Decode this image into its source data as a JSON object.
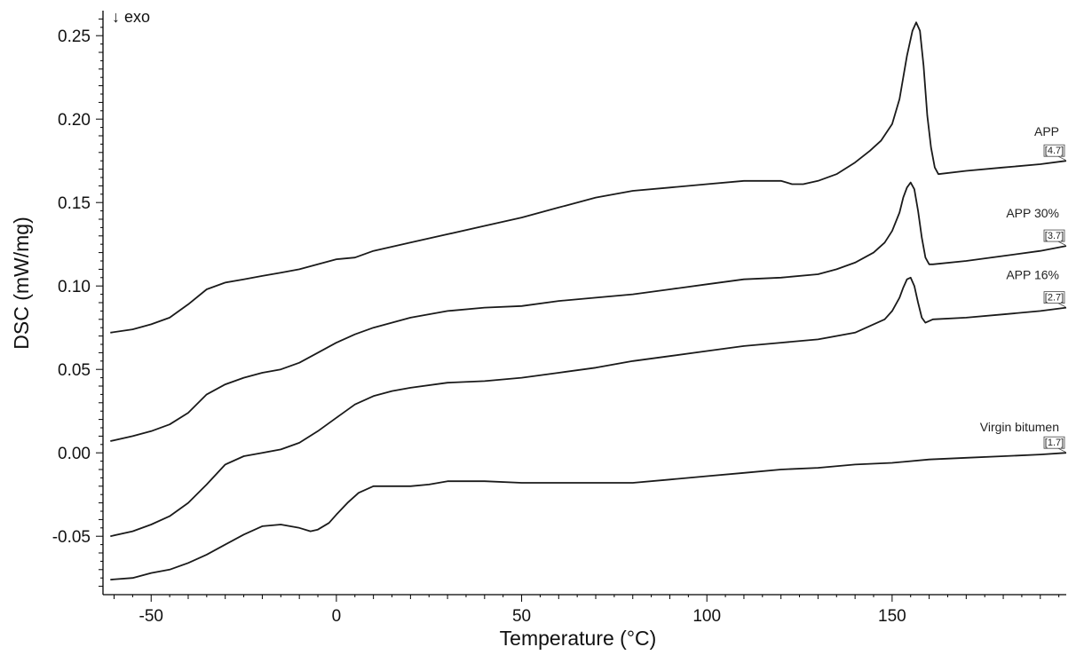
{
  "chart_data": {
    "type": "line",
    "title": "",
    "xlabel": "Temperature (°C)",
    "ylabel": "DSC  (mW/mg)",
    "annotation": "↓ exo",
    "xlim": [
      -63,
      197
    ],
    "ylim": [
      -0.085,
      0.265
    ],
    "x_ticks": [
      -50,
      0,
      50,
      100,
      150
    ],
    "y_ticks": [
      -0.05,
      0.0,
      0.05,
      0.1,
      0.15,
      0.2,
      0.25
    ],
    "y_tick_labels": [
      "-0.05",
      "0.00",
      "0.05",
      "0.10",
      "0.15",
      "0.20",
      "0.25"
    ],
    "grid": false,
    "legend": "none",
    "series": [
      {
        "name": "APP",
        "end_tag": "[4.7]",
        "x": [
          -61,
          -55,
          -50,
          -45,
          -40,
          -35,
          -30,
          -25,
          -20,
          -15,
          -10,
          -5,
          0,
          5,
          10,
          20,
          30,
          40,
          50,
          60,
          70,
          80,
          90,
          100,
          110,
          120,
          123,
          126,
          130,
          135,
          140,
          144,
          147,
          150,
          152,
          154,
          155.5,
          156.5,
          157.5,
          158.5,
          159.5,
          160.5,
          161.5,
          162.5,
          170,
          180,
          190,
          197
        ],
        "y": [
          0.072,
          0.074,
          0.077,
          0.081,
          0.089,
          0.098,
          0.102,
          0.104,
          0.106,
          0.108,
          0.11,
          0.113,
          0.116,
          0.117,
          0.121,
          0.126,
          0.131,
          0.136,
          0.141,
          0.147,
          0.153,
          0.157,
          0.159,
          0.161,
          0.163,
          0.163,
          0.161,
          0.161,
          0.163,
          0.167,
          0.174,
          0.181,
          0.187,
          0.197,
          0.212,
          0.238,
          0.253,
          0.258,
          0.253,
          0.232,
          0.202,
          0.183,
          0.171,
          0.167,
          0.169,
          0.171,
          0.173,
          0.175
        ]
      },
      {
        "name": "APP 30%",
        "end_tag": "[3.7]",
        "x": [
          -61,
          -55,
          -50,
          -45,
          -40,
          -35,
          -30,
          -25,
          -20,
          -15,
          -10,
          -5,
          0,
          5,
          10,
          20,
          30,
          40,
          50,
          60,
          70,
          80,
          90,
          100,
          110,
          120,
          130,
          135,
          140,
          145,
          148,
          150,
          152,
          153,
          154,
          155,
          156,
          157,
          158,
          159,
          160,
          161,
          170,
          180,
          190,
          197
        ],
        "y": [
          0.007,
          0.01,
          0.013,
          0.017,
          0.024,
          0.035,
          0.041,
          0.045,
          0.048,
          0.05,
          0.054,
          0.06,
          0.066,
          0.071,
          0.075,
          0.081,
          0.085,
          0.087,
          0.088,
          0.091,
          0.093,
          0.095,
          0.098,
          0.101,
          0.104,
          0.105,
          0.107,
          0.11,
          0.114,
          0.12,
          0.126,
          0.133,
          0.144,
          0.153,
          0.159,
          0.162,
          0.158,
          0.145,
          0.129,
          0.117,
          0.113,
          0.113,
          0.115,
          0.118,
          0.121,
          0.124
        ]
      },
      {
        "name": "APP 16%",
        "end_tag": "[2.7]",
        "x": [
          -61,
          -55,
          -50,
          -45,
          -40,
          -35,
          -30,
          -25,
          -20,
          -15,
          -10,
          -5,
          0,
          5,
          10,
          15,
          20,
          30,
          40,
          50,
          60,
          70,
          80,
          90,
          100,
          110,
          120,
          130,
          140,
          145,
          148,
          150,
          152,
          153,
          154,
          155,
          156,
          157,
          158,
          159,
          160,
          161,
          170,
          180,
          190,
          197
        ],
        "y": [
          -0.05,
          -0.047,
          -0.043,
          -0.038,
          -0.03,
          -0.019,
          -0.007,
          -0.002,
          0.0,
          0.002,
          0.006,
          0.013,
          0.021,
          0.029,
          0.034,
          0.037,
          0.039,
          0.042,
          0.043,
          0.045,
          0.048,
          0.051,
          0.055,
          0.058,
          0.061,
          0.064,
          0.066,
          0.068,
          0.072,
          0.077,
          0.08,
          0.085,
          0.093,
          0.099,
          0.104,
          0.105,
          0.1,
          0.09,
          0.081,
          0.078,
          0.079,
          0.08,
          0.081,
          0.083,
          0.085,
          0.087
        ]
      },
      {
        "name": "Virgin bitumen",
        "end_tag": "[1.7]",
        "x": [
          -61,
          -55,
          -50,
          -45,
          -40,
          -35,
          -30,
          -25,
          -20,
          -15,
          -10,
          -7,
          -5,
          -2,
          0,
          3,
          6,
          10,
          15,
          20,
          25,
          30,
          40,
          50,
          60,
          70,
          80,
          90,
          100,
          110,
          120,
          130,
          140,
          150,
          160,
          170,
          180,
          190,
          197
        ],
        "y": [
          -0.076,
          -0.075,
          -0.072,
          -0.07,
          -0.066,
          -0.061,
          -0.055,
          -0.049,
          -0.044,
          -0.043,
          -0.045,
          -0.047,
          -0.046,
          -0.042,
          -0.037,
          -0.03,
          -0.024,
          -0.02,
          -0.02,
          -0.02,
          -0.019,
          -0.017,
          -0.017,
          -0.018,
          -0.018,
          -0.018,
          -0.018,
          -0.016,
          -0.014,
          -0.012,
          -0.01,
          -0.009,
          -0.007,
          -0.006,
          -0.004,
          -0.003,
          -0.002,
          -0.001,
          0.0
        ]
      }
    ]
  }
}
